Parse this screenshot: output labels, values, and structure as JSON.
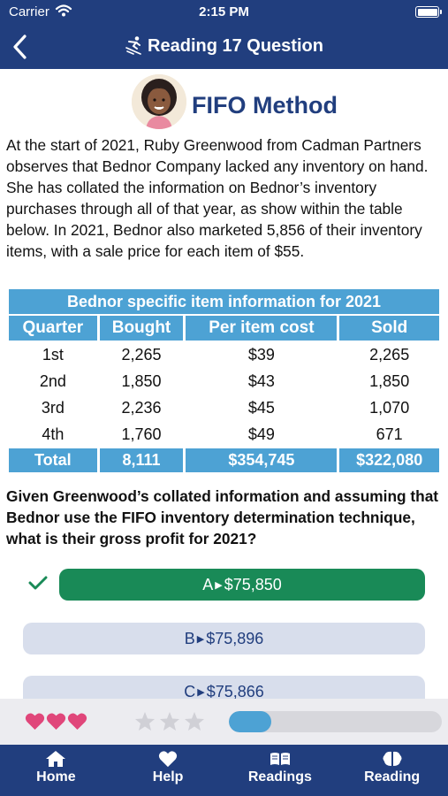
{
  "status_bar": {
    "carrier": "Carrier",
    "time": "2:15 PM"
  },
  "nav": {
    "title": "Reading 17 Question"
  },
  "header": {
    "title": "FIFO Method"
  },
  "question": {
    "text": "At the start of 2021, Ruby Greenwood from Cadman Partners observes that Bednor Company lacked any inventory on hand. She has collated the information on Bednor’s inventory purchases through all of that year, as show within the table below. In 2021, Bednor also marketed 5,856 of their inventory items, with a sale price for each item of $55."
  },
  "table": {
    "title": "Bednor specific item information for 2021",
    "headers": [
      "Quarter",
      "Bought",
      "Per item cost",
      "Sold"
    ],
    "rows": [
      [
        "1st",
        "2,265",
        "$39",
        "2,265"
      ],
      [
        "2nd",
        "1,850",
        "$43",
        "1,850"
      ],
      [
        "3rd",
        "2,236",
        "$45",
        "1,070"
      ],
      [
        "4th",
        "1,760",
        "$49",
        "671"
      ]
    ],
    "total": [
      "Total",
      "8,111",
      "$354,745",
      "$322,080"
    ]
  },
  "prompt": {
    "text": "Given Greenwood’s collated information and assuming that Bednor use the FIFO inventory determination technique, what is their gross profit for 2021?"
  },
  "answers": [
    {
      "letter": "A",
      "value": "$75,850",
      "correct": true
    },
    {
      "letter": "B",
      "value": "$75,896",
      "correct": false
    },
    {
      "letter": "C",
      "value": "$75,866",
      "correct": false
    }
  ],
  "progress": {
    "hearts": 3,
    "stars_filled": 0,
    "stars_total": 3,
    "fraction": 0.2
  },
  "colors": {
    "navy": "#213e7e",
    "accent": "#4da2d4",
    "correct": "#198a57",
    "heart": "#e0467a"
  },
  "tabs": [
    {
      "label": "Home",
      "icon": "home-icon"
    },
    {
      "label": "Help",
      "icon": "heart-icon"
    },
    {
      "label": "Readings",
      "icon": "book-icon"
    },
    {
      "label": "Reading",
      "icon": "brain-icon"
    }
  ]
}
